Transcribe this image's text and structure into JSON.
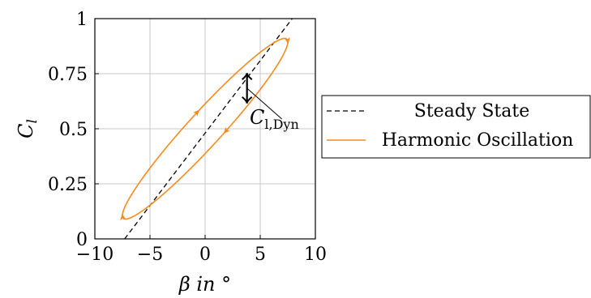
{
  "chart_data": {
    "type": "line",
    "xlabel": "β in °",
    "ylabel": "C_l",
    "xlim": [
      -10,
      10
    ],
    "ylim": [
      0,
      1
    ],
    "xticks": [
      "−10",
      "−5",
      "0",
      "5",
      "10"
    ],
    "yticks": [
      "0",
      "0.25",
      "0.5",
      "0.75",
      "1"
    ],
    "grid": true,
    "legend_position": "outside-right",
    "series": [
      {
        "name": "Steady State",
        "style": "dashed",
        "color": "#000000",
        "x": [
          -7.3,
          7.9
        ],
        "y": [
          0.0,
          1.0
        ]
      },
      {
        "name": "Harmonic Oscillation",
        "style": "solid",
        "color": "#f58b1f",
        "center": [
          0.0,
          0.5
        ],
        "amplitude_deg": 7.5,
        "amplitude_cl": 0.41,
        "phase_lag_deg": 16,
        "direction": "counterclockwise"
      }
    ],
    "annotations": [
      {
        "label": "C_{l,Dyn}",
        "text_main": "C",
        "text_sub": "l,Dyn",
        "x": 3.8,
        "y_top": 0.753,
        "y_bottom": 0.615
      }
    ]
  }
}
